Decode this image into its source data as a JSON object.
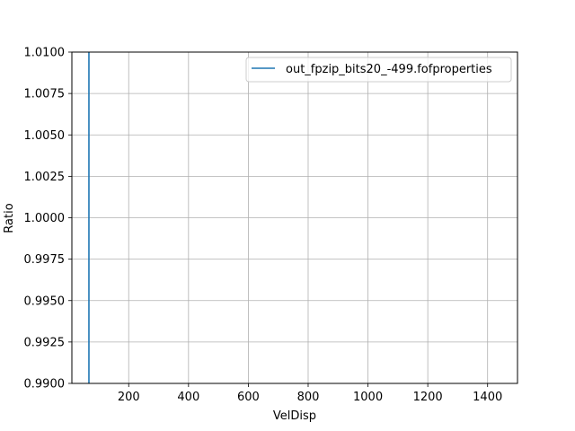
{
  "chart_data": {
    "type": "line",
    "title": "",
    "xlabel": "VelDisp",
    "ylabel": "Ratio",
    "xlim": [
      10,
      1500
    ],
    "ylim": [
      0.99,
      1.01
    ],
    "x_ticks": [
      200,
      400,
      600,
      800,
      1000,
      1200,
      1400
    ],
    "x_tick_labels": [
      "200",
      "400",
      "600",
      "800",
      "1000",
      "1200",
      "1400"
    ],
    "y_ticks": [
      0.99,
      0.9925,
      0.995,
      0.9975,
      1.0,
      1.0025,
      1.005,
      1.0075,
      1.01
    ],
    "y_tick_labels": [
      "0.9900",
      "0.9925",
      "0.9950",
      "0.9975",
      "1.0000",
      "1.0025",
      "1.0050",
      "1.0075",
      "1.0100"
    ],
    "grid": true,
    "legend_position": "top-right",
    "series": [
      {
        "name": "out_fpzip_bits20_-499.fofproperties",
        "color": "#1f77b4",
        "x": [
          67,
          67
        ],
        "y": [
          0.99,
          1.01
        ]
      }
    ]
  }
}
